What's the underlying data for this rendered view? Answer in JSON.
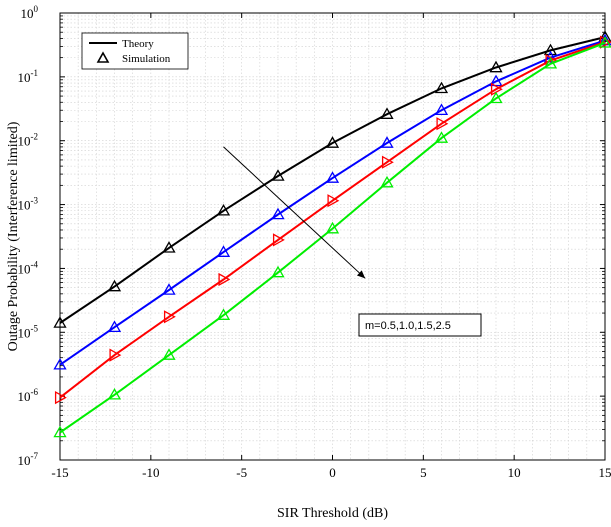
{
  "chart_data": {
    "type": "line",
    "title": "",
    "xlabel": "SIR Threshold (dB)",
    "ylabel": "Outage Probability (Interference limited)",
    "xlim": [
      -15,
      15
    ],
    "ylim_exponents": [
      -7,
      0
    ],
    "y_scale": "log",
    "grid": true,
    "x_ticks": [
      "-15",
      "-10",
      "-5",
      "0",
      "5",
      "10",
      "15"
    ],
    "y_tick_base": "10",
    "y_tick_exponents": [
      "-7",
      "-6",
      "-5",
      "-4",
      "-3",
      "-2",
      "-1",
      "0"
    ],
    "x": [
      -15,
      -12,
      -9,
      -6,
      -3,
      0,
      3,
      6,
      9,
      12,
      15
    ],
    "legend": {
      "position": "top-left",
      "entries": [
        {
          "label": "Theory",
          "style": "solid-line"
        },
        {
          "label": "Simulation",
          "style": "triangle-marker"
        }
      ]
    },
    "annotation": {
      "text": "m=0.5,1.0,1.5,2.5",
      "arrow_start": [
        -6,
        0.008
      ],
      "arrow_end": [
        1.8,
        7e-05
      ]
    },
    "series": [
      {
        "color": "#000000",
        "marker": "triangle-up",
        "values": [
          1.4e-05,
          5.2e-05,
          0.00021,
          0.0008,
          0.0028,
          0.0092,
          0.026,
          0.066,
          0.14,
          0.26,
          0.42
        ]
      },
      {
        "color": "#0000ff",
        "marker": "triangle-up",
        "values": [
          3.1e-06,
          1.2e-05,
          4.6e-05,
          0.00018,
          0.0007,
          0.0026,
          0.0092,
          0.03,
          0.085,
          0.2,
          0.37
        ]
      },
      {
        "color": "#ff0000",
        "marker": "triangle-right",
        "values": [
          9.5e-07,
          4.4e-06,
          1.75e-05,
          6.7e-05,
          0.00028,
          0.00115,
          0.0046,
          0.0185,
          0.064,
          0.18,
          0.35
        ]
      },
      {
        "color": "#00ee00",
        "marker": "triangle-up",
        "values": [
          2.7e-07,
          1.05e-06,
          4.4e-06,
          1.85e-05,
          8.6e-05,
          0.00042,
          0.0022,
          0.011,
          0.046,
          0.16,
          0.34
        ]
      }
    ]
  }
}
